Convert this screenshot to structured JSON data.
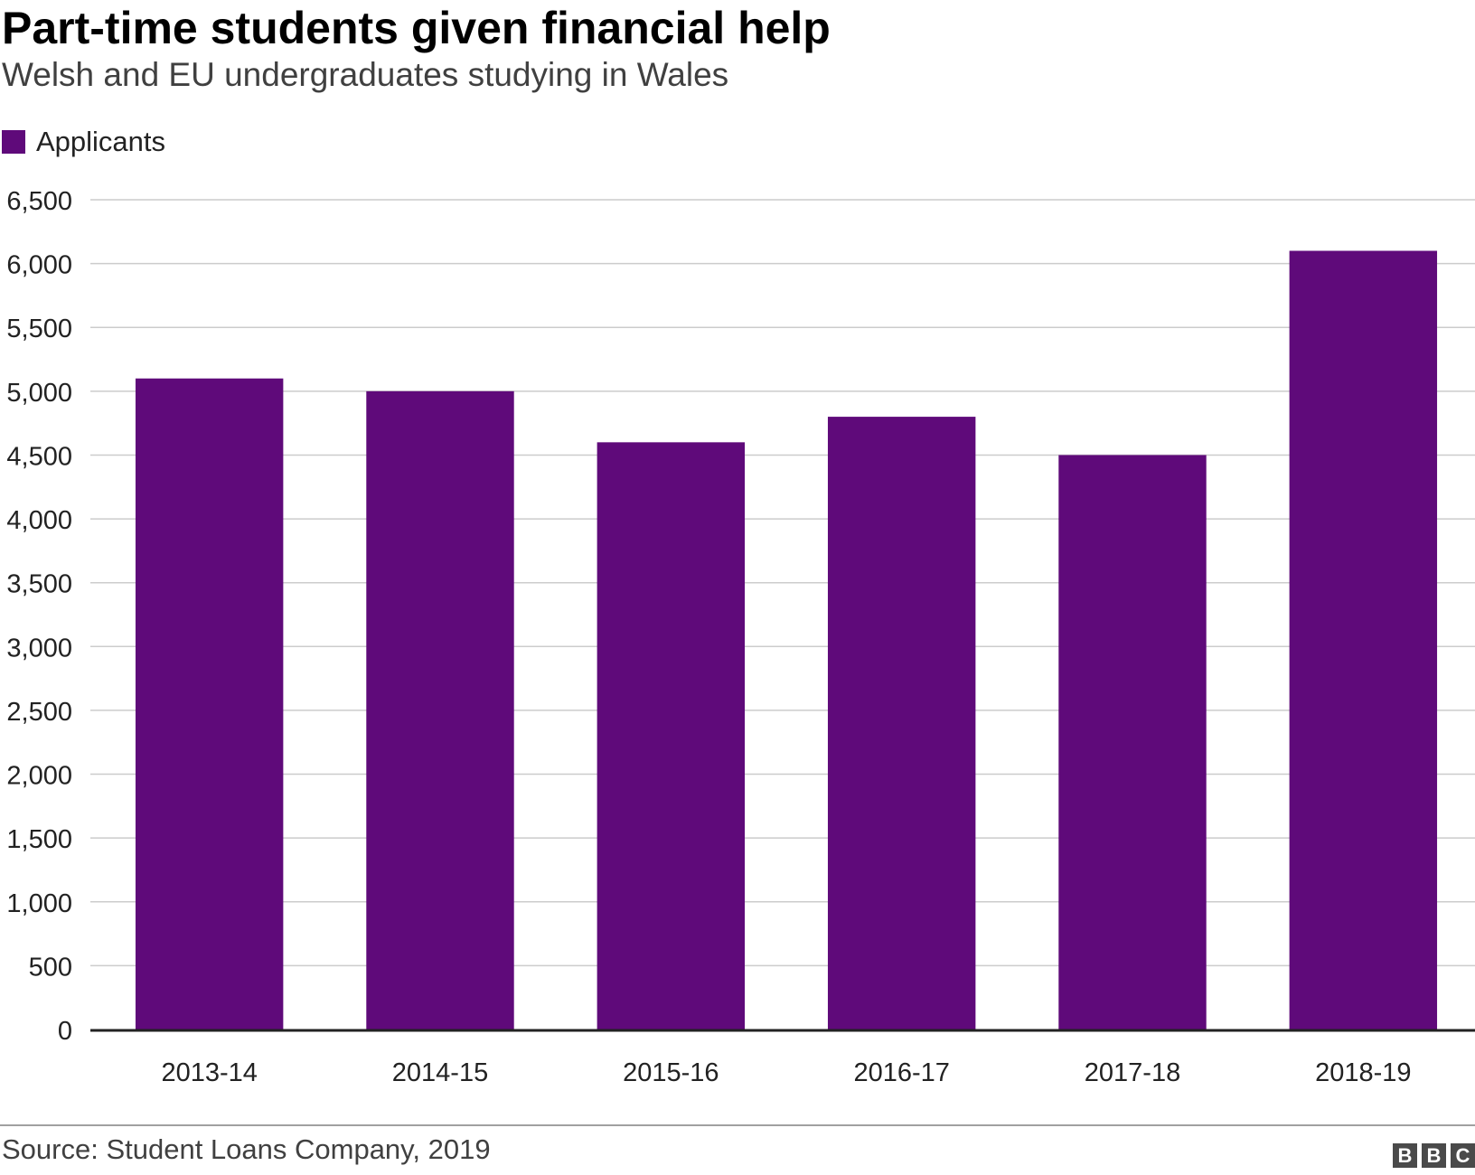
{
  "chart_data": {
    "type": "bar",
    "title": "Part-time students given financial help",
    "subtitle": "Welsh and EU undergraduates studying in Wales",
    "categories": [
      "2013-14",
      "2014-15",
      "2015-16",
      "2016-17",
      "2017-18",
      "2018-19"
    ],
    "series": [
      {
        "name": "Applicants",
        "values": [
          5100,
          5000,
          4600,
          4800,
          4500,
          6100
        ]
      }
    ],
    "ylim": [
      0,
      6500
    ],
    "yticks": [
      0,
      500,
      1000,
      1500,
      2000,
      2500,
      3000,
      3500,
      4000,
      4500,
      5000,
      5500,
      6000,
      6500
    ],
    "ytick_labels": [
      "0",
      "500",
      "1,000",
      "1,500",
      "2,000",
      "2,500",
      "3,000",
      "3,500",
      "4,000",
      "4,500",
      "5,000",
      "5,500",
      "6,000",
      "6,500"
    ],
    "grid": true,
    "legend_position": "top-left",
    "bar_color": "#5f0a7a",
    "gridline_color": "#cccccc"
  },
  "footer": {
    "source": "Source: Student Loans Company, 2019",
    "logo_letters": [
      "B",
      "B",
      "C"
    ]
  }
}
